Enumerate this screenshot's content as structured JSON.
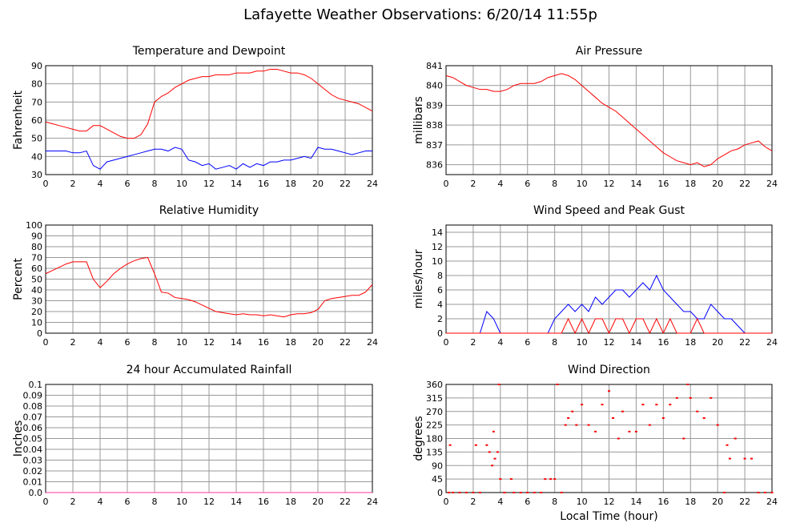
{
  "title": "Lafayette Weather Observations: 6/20/14 11:55p",
  "chart_data": [
    {
      "type": "line",
      "title": "Temperature and Dewpoint",
      "ylabel": "Fahrenheit",
      "xlim": [
        0,
        24
      ],
      "xticks": [
        0,
        2,
        4,
        6,
        8,
        10,
        12,
        14,
        16,
        18,
        20,
        22,
        24
      ],
      "ylim": [
        30,
        90
      ],
      "yticks": [
        30,
        40,
        50,
        60,
        70,
        80,
        90
      ],
      "grid": true,
      "x": [
        0,
        0.5,
        1,
        1.5,
        2,
        2.5,
        3,
        3.5,
        4,
        4.5,
        5,
        5.5,
        6,
        6.5,
        7,
        7.5,
        8,
        8.5,
        9,
        9.5,
        10,
        10.5,
        11,
        11.5,
        12,
        12.5,
        13,
        13.5,
        14,
        14.5,
        15,
        15.5,
        16,
        16.5,
        17,
        17.5,
        18,
        18.5,
        19,
        19.5,
        20,
        20.5,
        21,
        21.5,
        22,
        22.5,
        23,
        23.5,
        24
      ],
      "series": [
        {
          "color": "#ff0000",
          "values": [
            59,
            58,
            57,
            56,
            55,
            54,
            54,
            57,
            57,
            55,
            53,
            51,
            50,
            50,
            52,
            58,
            70,
            73,
            75,
            78,
            80,
            82,
            83,
            84,
            84,
            85,
            85,
            85,
            86,
            86,
            86,
            87,
            87,
            88,
            88,
            87,
            86,
            86,
            85,
            83,
            80,
            77,
            74,
            72,
            71,
            70,
            69,
            67,
            65
          ]
        },
        {
          "color": "#0000ff",
          "values": [
            43,
            43,
            43,
            43,
            42,
            42,
            43,
            35,
            33,
            37,
            38,
            39,
            40,
            41,
            42,
            43,
            44,
            44,
            43,
            45,
            44,
            38,
            37,
            35,
            36,
            33,
            34,
            35,
            33,
            36,
            34,
            36,
            35,
            37,
            37,
            38,
            38,
            39,
            40,
            39,
            45,
            44,
            44,
            43,
            42,
            41,
            42,
            43,
            43
          ]
        }
      ]
    },
    {
      "type": "line",
      "title": "Air Pressure",
      "ylabel": "millibars",
      "xlim": [
        0,
        24
      ],
      "xticks": [
        0,
        2,
        4,
        6,
        8,
        10,
        12,
        14,
        16,
        18,
        20,
        22,
        24
      ],
      "ylim": [
        835.5,
        841
      ],
      "yticks": [
        836,
        837,
        838,
        839,
        840,
        841
      ],
      "grid": true,
      "x": [
        0,
        0.5,
        1,
        1.5,
        2,
        2.5,
        3,
        3.5,
        4,
        4.5,
        5,
        5.5,
        6,
        6.5,
        7,
        7.5,
        8,
        8.5,
        9,
        9.5,
        10,
        10.5,
        11,
        11.5,
        12,
        12.5,
        13,
        13.5,
        14,
        14.5,
        15,
        15.5,
        16,
        16.5,
        17,
        17.5,
        18,
        18.5,
        19,
        19.5,
        20,
        20.5,
        21,
        21.5,
        22,
        22.5,
        23,
        23.5,
        24
      ],
      "series": [
        {
          "color": "#ff0000",
          "values": [
            840.5,
            840.4,
            840.2,
            840.0,
            839.9,
            839.8,
            839.8,
            839.7,
            839.7,
            839.8,
            840.0,
            840.1,
            840.1,
            840.1,
            840.2,
            840.4,
            840.5,
            840.6,
            840.5,
            840.3,
            840.0,
            839.7,
            839.4,
            839.1,
            838.9,
            838.7,
            838.4,
            838.1,
            837.8,
            837.5,
            837.2,
            836.9,
            836.6,
            836.4,
            836.2,
            836.1,
            836.0,
            836.1,
            835.9,
            836.0,
            836.3,
            836.5,
            836.7,
            836.8,
            837.0,
            837.1,
            837.2,
            836.9,
            836.7
          ]
        }
      ]
    },
    {
      "type": "line",
      "title": "Relative Humidity",
      "ylabel": "Percent",
      "xlim": [
        0,
        24
      ],
      "xticks": [
        0,
        2,
        4,
        6,
        8,
        10,
        12,
        14,
        16,
        18,
        20,
        22,
        24
      ],
      "ylim": [
        0,
        100
      ],
      "yticks": [
        0,
        10,
        20,
        30,
        40,
        50,
        60,
        70,
        80,
        90,
        100
      ],
      "grid": true,
      "x": [
        0,
        0.5,
        1,
        1.5,
        2,
        2.5,
        3,
        3.5,
        4,
        4.5,
        5,
        5.5,
        6,
        6.5,
        7,
        7.5,
        8,
        8.5,
        9,
        9.5,
        10,
        10.5,
        11,
        11.5,
        12,
        12.5,
        13,
        13.5,
        14,
        14.5,
        15,
        15.5,
        16,
        16.5,
        17,
        17.5,
        18,
        18.5,
        19,
        19.5,
        20,
        20.5,
        21,
        21.5,
        22,
        22.5,
        23,
        23.5,
        24
      ],
      "series": [
        {
          "color": "#ff0000",
          "values": [
            55,
            58,
            61,
            64,
            66,
            66,
            66,
            50,
            42,
            48,
            55,
            60,
            64,
            67,
            69,
            70,
            55,
            38,
            37,
            33,
            32,
            31,
            29,
            26,
            23,
            20,
            19,
            18,
            17,
            18,
            17,
            17,
            16,
            17,
            16,
            15,
            17,
            18,
            18,
            19,
            22,
            30,
            32,
            33,
            34,
            35,
            35,
            38,
            45
          ]
        }
      ]
    },
    {
      "type": "line",
      "title": "Wind Speed and Peak Gust",
      "ylabel": "miles/hour",
      "xlim": [
        0,
        24
      ],
      "xticks": [
        0,
        2,
        4,
        6,
        8,
        10,
        12,
        14,
        16,
        18,
        20,
        22,
        24
      ],
      "ylim": [
        0,
        15
      ],
      "yticks": [
        0,
        2,
        4,
        6,
        8,
        10,
        12,
        14
      ],
      "grid": true,
      "x": [
        0,
        0.5,
        1,
        1.5,
        2,
        2.5,
        3,
        3.5,
        4,
        4.5,
        5,
        5.5,
        6,
        6.5,
        7,
        7.5,
        8,
        8.5,
        9,
        9.5,
        10,
        10.5,
        11,
        11.5,
        12,
        12.5,
        13,
        13.5,
        14,
        14.5,
        15,
        15.5,
        16,
        16.5,
        17,
        17.5,
        18,
        18.5,
        19,
        19.5,
        20,
        20.5,
        21,
        21.5,
        22,
        22.5,
        23,
        23.5,
        24
      ],
      "series": [
        {
          "color": "#0000ff",
          "values": [
            0,
            0,
            0,
            0,
            0,
            0,
            3,
            2,
            0,
            0,
            0,
            0,
            0,
            0,
            0,
            0,
            2,
            3,
            4,
            3,
            4,
            3,
            5,
            4,
            5,
            6,
            6,
            5,
            6,
            7,
            6,
            8,
            6,
            5,
            4,
            3,
            3,
            2,
            2,
            4,
            3,
            2,
            2,
            1,
            0,
            0,
            0,
            0,
            0
          ]
        },
        {
          "color": "#ff0000",
          "values": [
            0,
            0,
            0,
            0,
            0,
            0,
            0,
            0,
            0,
            0,
            0,
            0,
            0,
            0,
            0,
            0,
            0,
            0,
            2,
            0,
            2,
            0,
            2,
            2,
            0,
            2,
            2,
            0,
            2,
            2,
            0,
            2,
            0,
            2,
            0,
            0,
            0,
            2,
            0,
            0,
            0,
            0,
            0,
            0,
            0,
            0,
            0,
            0,
            0
          ]
        }
      ]
    },
    {
      "type": "line",
      "title": "24 hour Accumulated Rainfall",
      "ylabel": "Inches",
      "xlim": [
        0,
        24
      ],
      "xticks": [
        0,
        2,
        4,
        6,
        8,
        10,
        12,
        14,
        16,
        18,
        20,
        22,
        24
      ],
      "ylim": [
        0,
        0.1
      ],
      "yticks": [
        {
          "value": 0,
          "label": "0.0"
        },
        0.01,
        0.02,
        0.03,
        0.04,
        0.05,
        0.06,
        0.07,
        0.08,
        0.09,
        0.1
      ],
      "grid": true,
      "x": [
        0,
        24
      ],
      "series": [
        {
          "color": "#ff3399",
          "values": [
            0,
            0
          ]
        }
      ]
    },
    {
      "type": "scatter",
      "title": "Wind Direction",
      "ylabel": "degrees",
      "xlabel": "Local Time (hour)",
      "xlim": [
        0,
        24
      ],
      "xticks": [
        0,
        2,
        4,
        6,
        8,
        10,
        12,
        14,
        16,
        18,
        20,
        22,
        24
      ],
      "ylim": [
        0,
        360
      ],
      "yticks": [
        0,
        45,
        90,
        135,
        180,
        225,
        270,
        315,
        360
      ],
      "grid": true,
      "x": [
        0.2,
        0.3,
        0.5,
        1,
        1.5,
        2,
        2.2,
        2.5,
        3,
        3.2,
        3.4,
        3.5,
        3.6,
        3.8,
        3.9,
        4,
        4.3,
        4.8,
        5,
        5.5,
        6,
        6.5,
        7,
        7.3,
        7.7,
        8,
        8.2,
        8.5,
        8.8,
        9,
        9.3,
        9.6,
        10,
        10.5,
        11,
        11.5,
        12,
        12.3,
        12.7,
        13,
        13.5,
        14,
        14.5,
        15,
        15.5,
        16,
        16.5,
        17,
        17.5,
        17.8,
        18,
        18.5,
        19,
        19.5,
        20,
        20.5,
        20.7,
        20.9,
        21.3,
        22,
        22.5,
        23,
        23.5,
        24
      ],
      "series": [
        {
          "color": "#ff0000",
          "values": [
            0,
            158,
            0,
            0,
            0,
            0,
            158,
            0,
            158,
            135,
            90,
            203,
            113,
            135,
            360,
            45,
            0,
            45,
            0,
            0,
            0,
            0,
            0,
            45,
            45,
            45,
            360,
            0,
            225,
            248,
            270,
            225,
            293,
            225,
            203,
            293,
            338,
            248,
            180,
            270,
            203,
            203,
            293,
            225,
            293,
            248,
            293,
            315,
            180,
            360,
            315,
            270,
            248,
            315,
            225,
            0,
            158,
            113,
            180,
            113,
            113,
            0,
            0,
            0
          ]
        }
      ]
    }
  ]
}
